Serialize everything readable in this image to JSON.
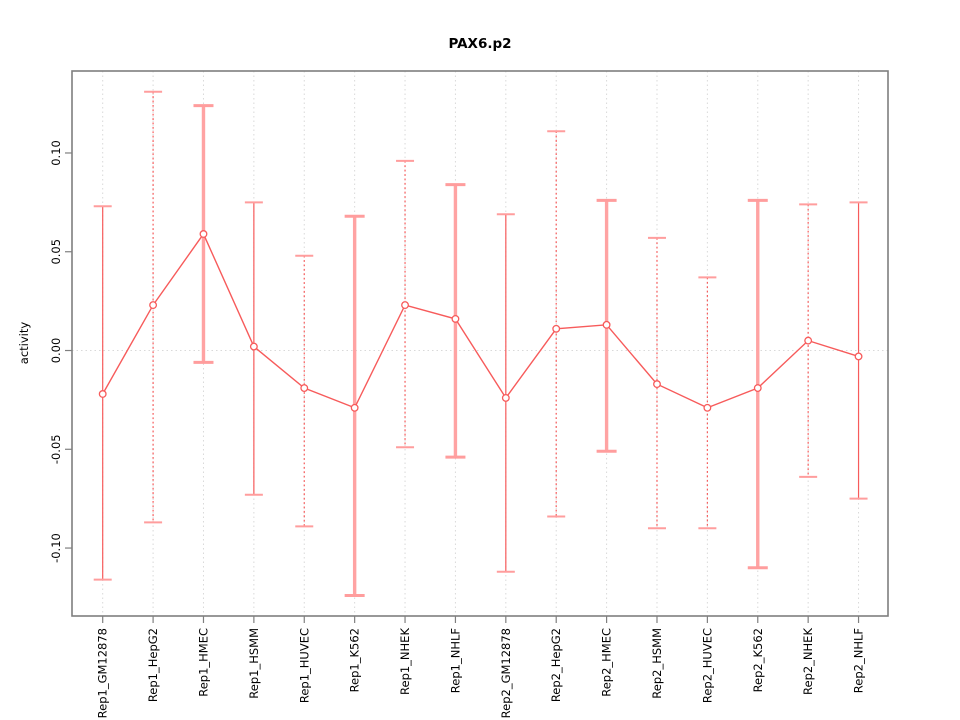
{
  "chart_data": {
    "type": "line",
    "title": "PAX6.p2",
    "xlabel": "",
    "ylabel": "activity",
    "legend": null,
    "grid": "dotted vertical gridline at every category; dotted horizontal line at y=0",
    "legend_position": "none",
    "categories": [
      "Rep1_GM12878",
      "Rep1_HepG2",
      "Rep1_HMEC",
      "Rep1_HSMM",
      "Rep1_HUVEC",
      "Rep1_K562",
      "Rep1_NHEK",
      "Rep1_NHLF",
      "Rep2_GM12878",
      "Rep2_HepG2",
      "Rep2_HMEC",
      "Rep2_HSMM",
      "Rep2_HUVEC",
      "Rep2_K562",
      "Rep2_NHEK",
      "Rep2_NHLF"
    ],
    "series": [
      {
        "name": "activity",
        "marker": "open-circle",
        "values": [
          -0.022,
          0.023,
          0.059,
          0.002,
          -0.019,
          -0.029,
          0.023,
          0.016,
          -0.024,
          0.011,
          0.013,
          -0.017,
          -0.029,
          -0.019,
          0.005,
          -0.003
        ],
        "ci_high": [
          0.073,
          0.131,
          0.124,
          0.075,
          0.048,
          0.068,
          0.096,
          0.084,
          0.069,
          0.111,
          0.076,
          0.057,
          0.037,
          0.076,
          0.074,
          0.075
        ],
        "ci_low": [
          -0.116,
          -0.087,
          -0.006,
          -0.073,
          -0.089,
          -0.124,
          -0.049,
          -0.054,
          -0.112,
          -0.084,
          -0.051,
          -0.09,
          -0.09,
          -0.11,
          -0.064,
          -0.075
        ],
        "bar_styles": [
          "solid",
          "dotted",
          "thick",
          "solid",
          "dotted",
          "thick",
          "dotted",
          "thick",
          "solid",
          "dotted",
          "thick",
          "dotted",
          "dotted",
          "thick",
          "dotted",
          "solid"
        ]
      }
    ],
    "yticks": [
      -0.1,
      -0.05,
      0.0,
      0.05,
      0.1
    ],
    "ytick_labels": [
      "-0.10",
      "-0.05",
      "0.00",
      "0.05",
      "0.10"
    ],
    "ylim": [
      -0.1344,
      0.1415
    ],
    "colors": {
      "line": "#f75b5b",
      "marker_stroke": "#f75b5b",
      "marker_fill": "#ffffff",
      "bar_thin": "#f75b5b",
      "bar_thick": "#ffa3a3",
      "cap": "#ff9d9d",
      "grid": "#d9d9d9",
      "axis_box": "#7f7f7f",
      "tick": "#7f7f7f",
      "text": "#000000",
      "background": "#ffffff"
    }
  }
}
